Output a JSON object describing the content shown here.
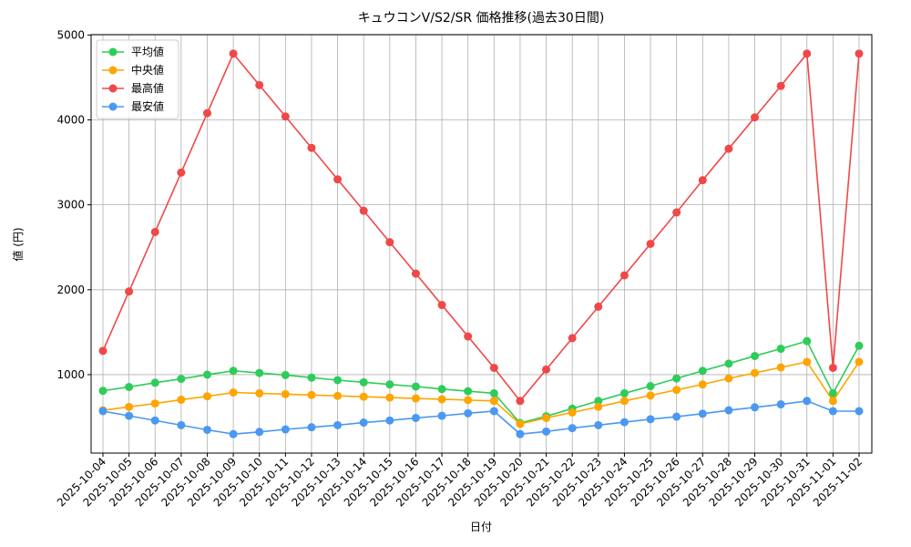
{
  "chart_data": {
    "type": "line",
    "title": "キュウコンV/S2/SR 価格推移(過去30日間)",
    "x_label": "日付",
    "y_label": "値 (円)",
    "categories": [
      "2025-10-04",
      "2025-10-05",
      "2025-10-06",
      "2025-10-07",
      "2025-10-08",
      "2025-10-09",
      "2025-10-10",
      "2025-10-11",
      "2025-10-12",
      "2025-10-13",
      "2025-10-14",
      "2025-10-15",
      "2025-10-16",
      "2025-10-17",
      "2025-10-18",
      "2025-10-19",
      "2025-10-20",
      "2025-10-21",
      "2025-10-22",
      "2025-10-23",
      "2025-10-24",
      "2025-10-25",
      "2025-10-26",
      "2025-10-27",
      "2025-10-28",
      "2025-10-29",
      "2025-10-30",
      "2025-10-31",
      "2025-11-01",
      "2025-11-02"
    ],
    "series": [
      {
        "name": "平均値",
        "color": "#2ecc5a",
        "values": [
          810,
          855,
          905,
          950,
          1000,
          1045,
          1020,
          995,
          965,
          935,
          910,
          885,
          860,
          830,
          805,
          780,
          430,
          510,
          600,
          690,
          780,
          865,
          955,
          1045,
          1130,
          1220,
          1305,
          1395,
          780,
          1340
        ]
      },
      {
        "name": "中央値",
        "color": "#ffa500",
        "values": [
          580,
          620,
          660,
          705,
          745,
          790,
          780,
          770,
          760,
          750,
          740,
          730,
          720,
          710,
          700,
          690,
          420,
          490,
          555,
          620,
          690,
          755,
          820,
          885,
          955,
          1020,
          1085,
          1150,
          690,
          1150
        ]
      },
      {
        "name": "最高値",
        "color": "#f04848",
        "values": [
          1280,
          1980,
          2680,
          3380,
          4080,
          4780,
          4410,
          4040,
          3670,
          3300,
          2930,
          2560,
          2190,
          1820,
          1450,
          1080,
          690,
          1060,
          1430,
          1800,
          2170,
          2540,
          2910,
          3290,
          3660,
          4030,
          4400,
          4780,
          1080,
          4780
        ]
      },
      {
        "name": "最安値",
        "color": "#4a98f0",
        "values": [
          570,
          515,
          460,
          405,
          350,
          300,
          325,
          355,
          380,
          405,
          435,
          460,
          490,
          515,
          545,
          570,
          300,
          330,
          370,
          405,
          440,
          475,
          505,
          540,
          580,
          615,
          650,
          690,
          570,
          570
        ]
      }
    ],
    "ylim": [
      76,
      5004
    ],
    "yticks": [
      1000,
      2000,
      3000,
      4000,
      5000
    ],
    "grid": true,
    "legend": "upper-left"
  }
}
